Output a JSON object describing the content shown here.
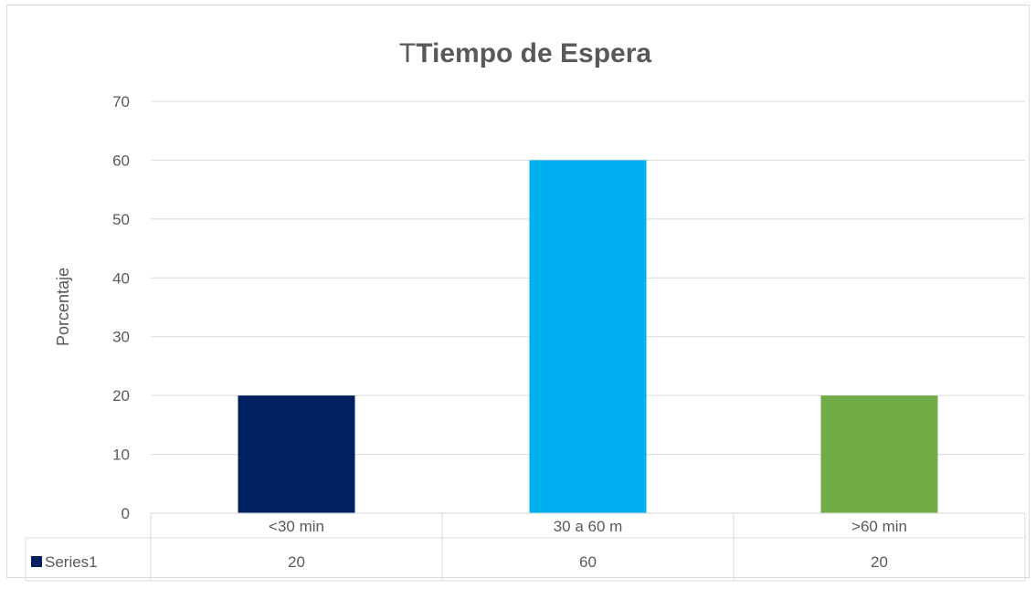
{
  "chart_data": {
    "type": "bar",
    "title_prefix": "T",
    "title_main": "Tiempo de Espera",
    "xlabel": "",
    "ylabel": "Porcentaje",
    "ylim": [
      0,
      70
    ],
    "yticks": [
      0,
      10,
      20,
      30,
      40,
      50,
      60,
      70
    ],
    "ytick_labels": [
      "0",
      "10",
      "20",
      "30",
      "40",
      "50",
      "60",
      "70"
    ],
    "grid": true,
    "categories": [
      "<30 min",
      "30 a 60 m",
      ">60 min"
    ],
    "series": [
      {
        "name": "Series1",
        "values": [
          20,
          60,
          20
        ],
        "value_labels": [
          "20",
          "60",
          "20"
        ],
        "colors": [
          "#002060",
          "#00b0f0",
          "#70ad47"
        ],
        "legend_key_color": "#002060"
      }
    ],
    "data_table": true
  }
}
